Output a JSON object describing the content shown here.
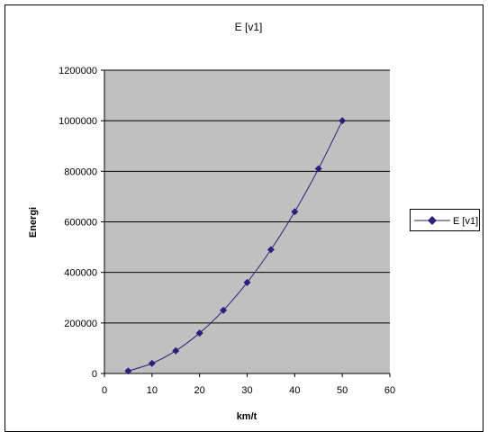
{
  "chart_data": {
    "type": "line",
    "title": "E [v1]",
    "xlabel": "km/t",
    "ylabel": "Energi",
    "xlim": [
      0,
      60
    ],
    "ylim": [
      0,
      1200000
    ],
    "x_ticks": [
      "0",
      "10",
      "20",
      "30",
      "40",
      "50",
      "60"
    ],
    "y_ticks": [
      "0",
      "200000",
      "400000",
      "600000",
      "800000",
      "1000000",
      "1200000"
    ],
    "grid": "horizontal",
    "legend_position": "right",
    "series": [
      {
        "name": "E [v1]",
        "color": "#2e1d7a",
        "x": [
          5,
          10,
          15,
          20,
          25,
          30,
          35,
          40,
          45,
          50
        ],
        "y": [
          10000,
          40000,
          90000,
          160000,
          250000,
          360000,
          490000,
          640000,
          810000,
          1000000
        ]
      }
    ],
    "colors": {
      "plot_background": "#c0c0c0",
      "gridline": "#000000",
      "marker": "#2e1d7a"
    }
  }
}
